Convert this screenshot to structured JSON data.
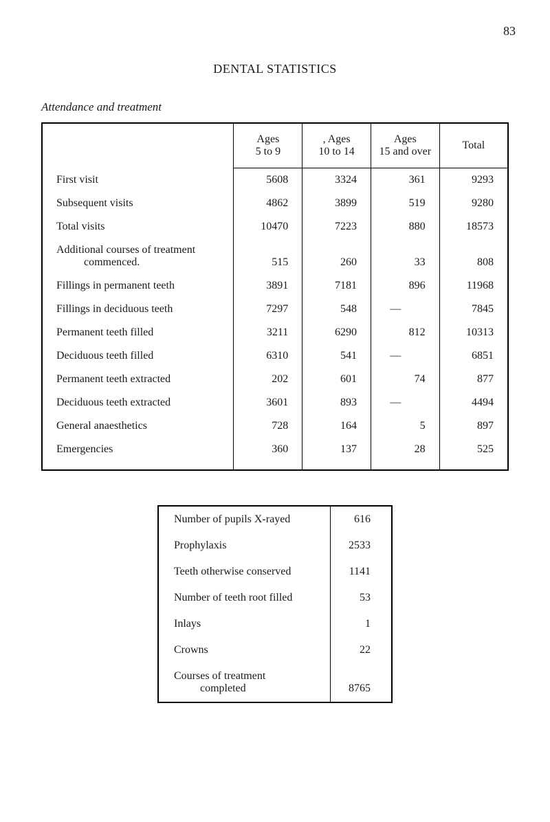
{
  "page_number": "83",
  "title": "DENTAL STATISTICS",
  "subtitle": "Attendance and treatment",
  "main_table": {
    "headers": {
      "category": "",
      "col1": "Ages\n5 to 9",
      "col2": ", Ages\n10 to 14",
      "col3": "Ages\n15 and over",
      "col4": "Total"
    },
    "rows": [
      {
        "label": "First visit",
        "v1": "5608",
        "v2": "3324",
        "v3": "361",
        "v4": "9293"
      },
      {
        "label": "Subsequent visits",
        "v1": "4862",
        "v2": "3899",
        "v3": "519",
        "v4": "9280"
      },
      {
        "label": "Total visits",
        "v1": "10470",
        "v2": "7223",
        "v3": "880",
        "v4": "18573"
      },
      {
        "label": "Additional courses of treatment",
        "v1": "",
        "v2": "",
        "v3": "",
        "v4": "",
        "nopad": true
      },
      {
        "label": "commenced.",
        "v1": "515",
        "v2": "260",
        "v3": "33",
        "v4": "808",
        "indent": true
      },
      {
        "label": "Fillings in permanent teeth",
        "v1": "3891",
        "v2": "7181",
        "v3": "896",
        "v4": "11968"
      },
      {
        "label": "Fillings in deciduous teeth",
        "v1": "7297",
        "v2": "548",
        "v3": "—",
        "v4": "7845",
        "dash3": true
      },
      {
        "label": "Permanent teeth filled",
        "v1": "3211",
        "v2": "6290",
        "v3": "812",
        "v4": "10313"
      },
      {
        "label": "Deciduous teeth filled",
        "v1": "6310",
        "v2": "541",
        "v3": "—",
        "v4": "6851",
        "dash3": true
      },
      {
        "label": "Permanent teeth extracted",
        "v1": "202",
        "v2": "601",
        "v3": "74",
        "v4": "877"
      },
      {
        "label": "Deciduous teeth extracted",
        "v1": "3601",
        "v2": "893",
        "v3": "—",
        "v4": "4494",
        "dash3": true
      },
      {
        "label": "General anaesthetics",
        "v1": "728",
        "v2": "164",
        "v3": "5",
        "v4": "897"
      },
      {
        "label": "Emergencies",
        "v1": "360",
        "v2": "137",
        "v3": "28",
        "v4": "525"
      }
    ]
  },
  "secondary_table": {
    "rows": [
      {
        "label": "Number of pupils X-rayed",
        "value": "616"
      },
      {
        "label": "Prophylaxis",
        "value": "2533"
      },
      {
        "label": "Teeth otherwise conserved",
        "value": "1141"
      },
      {
        "label": "Number of teeth root filled",
        "value": "53"
      },
      {
        "label": "Inlays",
        "value": "1"
      },
      {
        "label": "Crowns",
        "value": "22"
      },
      {
        "label": "Courses of treatment",
        "value": "",
        "nopad": true
      },
      {
        "label": "completed",
        "value": "8765",
        "indent": true
      }
    ]
  }
}
